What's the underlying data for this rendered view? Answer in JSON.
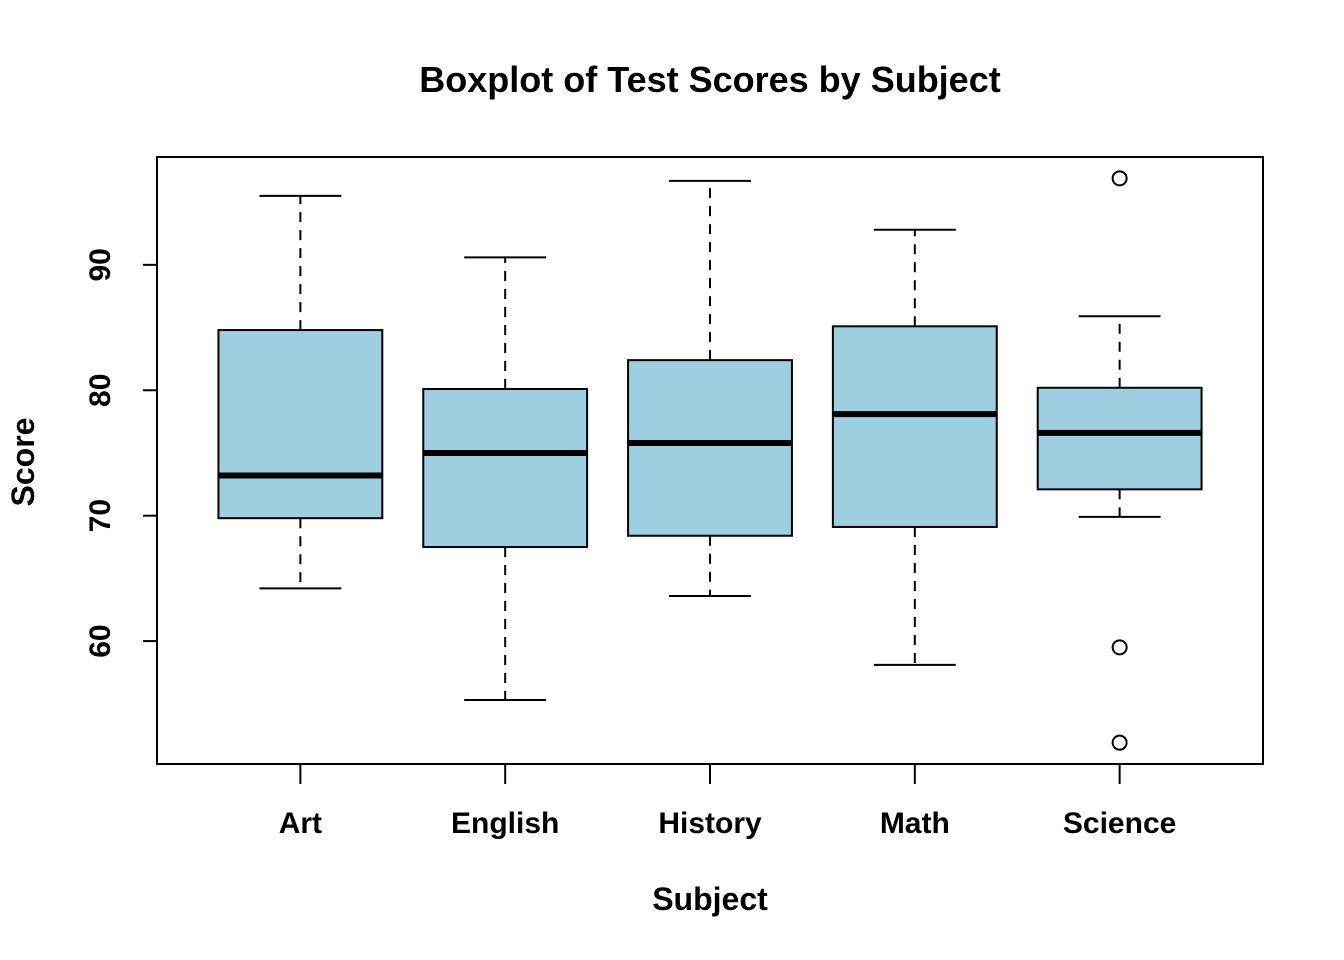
{
  "chart_data": {
    "type": "boxplot",
    "title": "Boxplot of Test Scores by Subject",
    "xlabel": "Subject",
    "ylabel": "Score",
    "ylim": [
      50.2,
      98.6
    ],
    "yticks": [
      60,
      70,
      80,
      90
    ],
    "ytick_labels": [
      "60",
      "70",
      "80",
      "90"
    ],
    "grid": false,
    "box_color": "#9ECFE0",
    "categories": [
      "Art",
      "English",
      "History",
      "Math",
      "Science"
    ],
    "boxes": [
      {
        "category": "Art",
        "whisker_low": 64.2,
        "q1": 69.8,
        "median": 73.2,
        "q3": 84.8,
        "whisker_high": 95.5,
        "outliers": []
      },
      {
        "category": "English",
        "whisker_low": 55.3,
        "q1": 67.5,
        "median": 75.0,
        "q3": 80.1,
        "whisker_high": 90.6,
        "outliers": []
      },
      {
        "category": "History",
        "whisker_low": 63.6,
        "q1": 68.4,
        "median": 75.8,
        "q3": 82.4,
        "whisker_high": 96.7,
        "outliers": []
      },
      {
        "category": "Math",
        "whisker_low": 58.1,
        "q1": 69.1,
        "median": 78.1,
        "q3": 85.1,
        "whisker_high": 92.8,
        "outliers": []
      },
      {
        "category": "Science",
        "whisker_low": 69.9,
        "q1": 72.1,
        "median": 76.6,
        "q3": 80.2,
        "whisker_high": 85.9,
        "outliers": [
          96.9,
          59.5,
          51.9
        ]
      }
    ]
  }
}
